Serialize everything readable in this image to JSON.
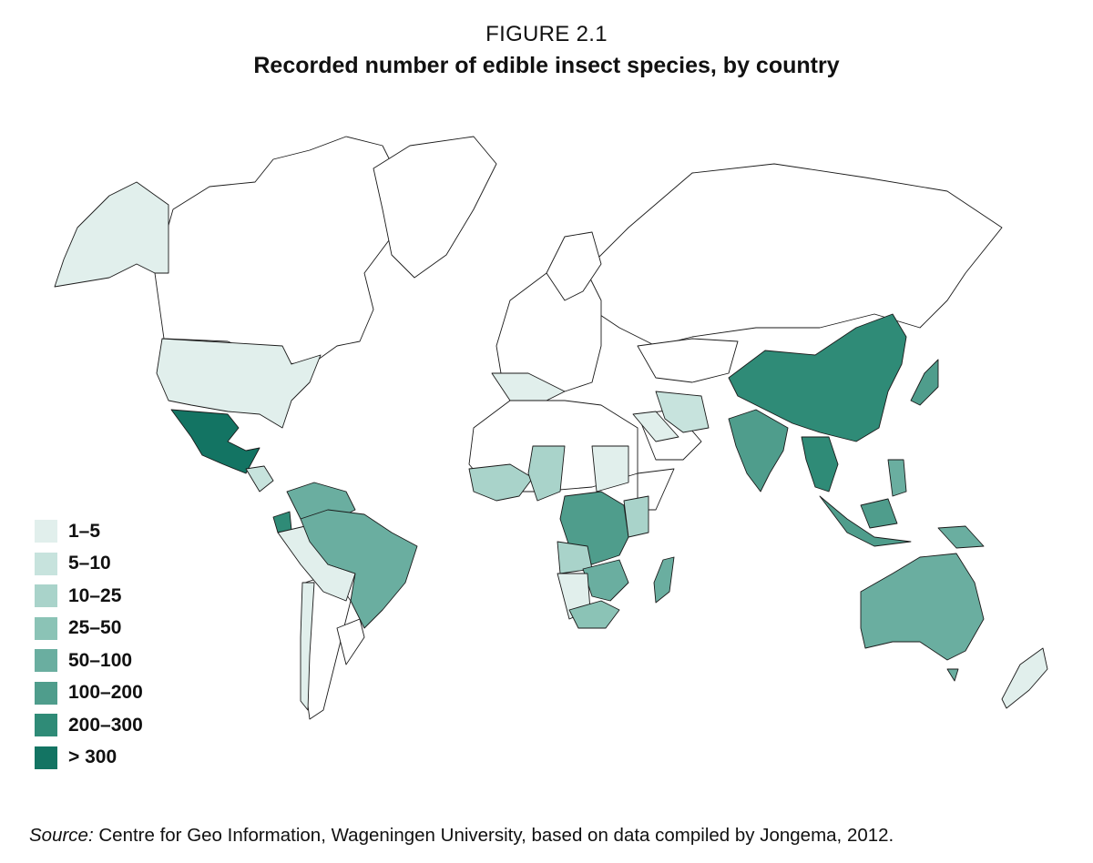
{
  "figure": {
    "label": "FIGURE 2.1",
    "title": "Recorded number of edible insect species, by country"
  },
  "legend": [
    {
      "label": "1–5",
      "color": "#e1efec"
    },
    {
      "label": "5–10",
      "color": "#c7e3dd"
    },
    {
      "label": "10–25",
      "color": "#a9d3ca"
    },
    {
      "label": "25–50",
      "color": "#8bc3b6"
    },
    {
      "label": "50–100",
      "color": "#6aaea0"
    },
    {
      "label": "100–200",
      "color": "#4f9d8c"
    },
    {
      "label": "200–300",
      "color": "#2f8b77"
    },
    {
      "label": "> 300",
      "color": "#137463"
    }
  ],
  "source": {
    "prefix": "Source:",
    "text": "Centre for Geo Information, Wageningen University, based on data compiled by Jongema, 2012."
  }
}
